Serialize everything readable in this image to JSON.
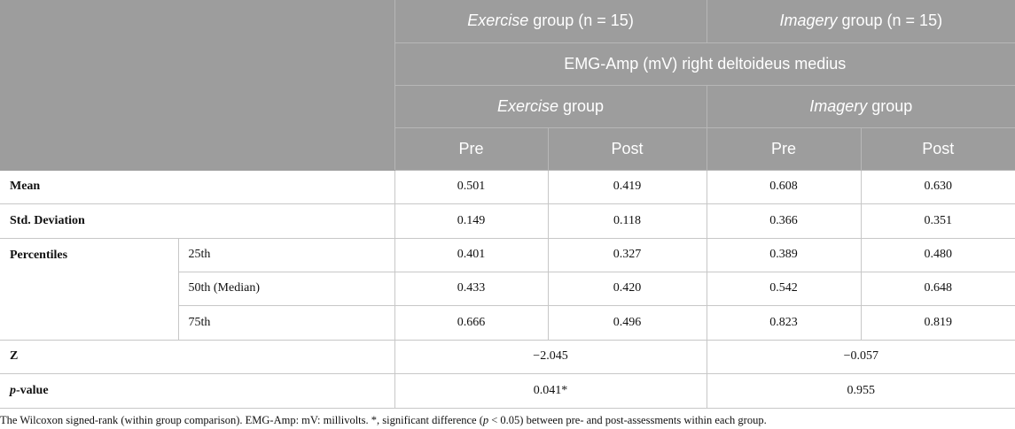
{
  "header": {
    "group_exercise_italic": "Exercise",
    "group_exercise_rest": " group (n = 15)",
    "group_imagery_italic": "Imagery",
    "group_imagery_rest": " group (n = 15)",
    "measure": "EMG-Amp (mV) right deltoideus medius",
    "sub_exercise_italic": "Exercise",
    "sub_exercise_rest": " group",
    "sub_imagery_italic": "Imagery",
    "sub_imagery_rest": " group",
    "pre": "Pre",
    "post": "Post"
  },
  "rows": {
    "mean": {
      "label": "Mean",
      "values": [
        "0.501",
        "0.419",
        "0.608",
        "0.630"
      ]
    },
    "sd": {
      "label": "Std. Deviation",
      "values": [
        "0.149",
        "0.118",
        "0.366",
        "0.351"
      ]
    },
    "percentiles": {
      "label": "Percentiles",
      "items": [
        {
          "label": "25th",
          "values": [
            "0.401",
            "0.327",
            "0.389",
            "0.480"
          ]
        },
        {
          "label": "50th (Median)",
          "values": [
            "0.433",
            "0.420",
            "0.542",
            "0.648"
          ]
        },
        {
          "label": "75th",
          "values": [
            "0.666",
            "0.496",
            "0.823",
            "0.819"
          ]
        }
      ]
    },
    "z": {
      "label": "Z",
      "exercise": "−2.045",
      "imagery": "−0.057"
    },
    "p": {
      "label_italic": "p",
      "label_rest": "-value",
      "exercise": "0.041*",
      "imagery": "0.955"
    }
  },
  "footnote": {
    "part1": "The Wilcoxon signed-rank (within group comparison). EMG-Amp: mV: millivolts. *, significant difference (",
    "p_italic": "p",
    "part2": " < 0.05) between pre- and post-assessments within each group."
  }
}
